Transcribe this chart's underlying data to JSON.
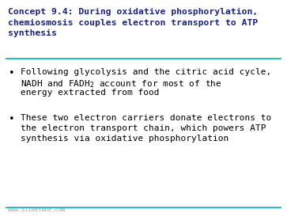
{
  "title_lines": [
    "Concept 9.4: During oxidative phosphorylation,",
    "chemiosmosis couples electron transport to ATP",
    "synthesis"
  ],
  "title_color": "#1a237e",
  "title_fontsize": 8.2,
  "separator_color": "#00b0b0",
  "background_color": "#ffffff",
  "bullet1_line1": "Following glycolysis and the citric acid cycle,",
  "bullet1_line2_pre": "NADH and FADH",
  "bullet1_line2_sub": "2",
  "bullet1_line2_post": " account for most of the",
  "bullet1_line3": "energy extracted from food",
  "bullet2_line1": "These two electron carriers donate electrons to",
  "bullet2_line2": "the electron transport chain, which powers ATP",
  "bullet2_line3": "synthesis via oxidative phosphorylation",
  "bullet_color": "#000000",
  "bullet_fontsize": 8.0,
  "footer_text": "www.slidetone.com",
  "footer_color": "#999999",
  "footer_fontsize": 5.0,
  "separator_linewidth": 1.2
}
